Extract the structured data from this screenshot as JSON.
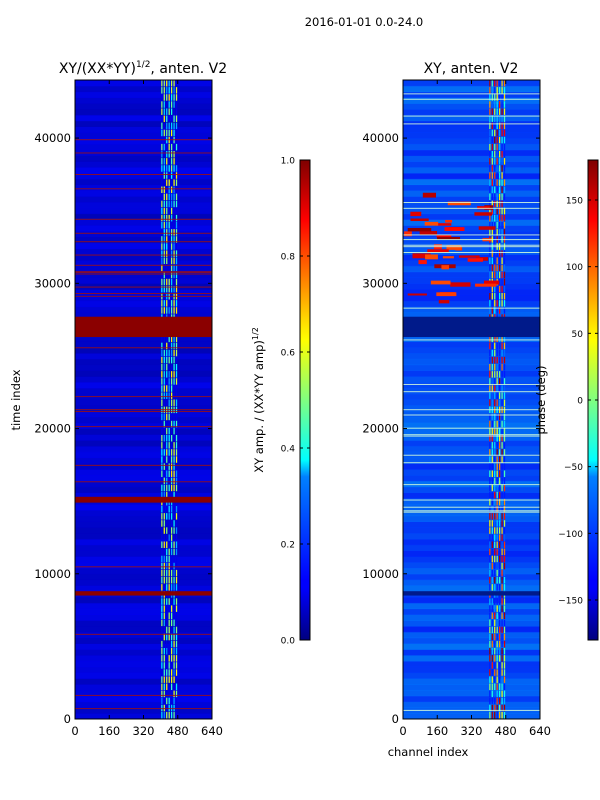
{
  "figure": {
    "suptitle": "2016-01-01 0.0-24.0"
  },
  "chart_data": [
    {
      "type": "heatmap",
      "title": "XY/(XX*YY)^1/2, anten. V2",
      "title_parts": {
        "main": "XY/(XX*YY)",
        "superscript": "1/2",
        "suffix": ", anten. V2"
      },
      "xlabel": "",
      "ylabel": "time index",
      "xlim": [
        0,
        640
      ],
      "ylim": [
        0,
        44000
      ],
      "xticks": [
        0,
        160,
        320,
        480,
        640
      ],
      "yticks": [
        0,
        10000,
        20000,
        30000,
        40000
      ],
      "active_channel_range": [
        400,
        480
      ],
      "flagged_time_bands": [
        [
          26300,
          27700
        ],
        [
          14900,
          15300
        ],
        [
          8500,
          8800
        ]
      ],
      "colorbar": {
        "label": "XY amp. / (XX*YY amp)^1/2",
        "label_parts": {
          "main": "XY amp. / (XX*YY amp)",
          "superscript": "1/2"
        },
        "range": [
          0.0,
          1.0
        ],
        "ticks": [
          "0.0",
          "0.2",
          "0.4",
          "0.6",
          "0.8",
          "1.0"
        ],
        "colormap": "jet"
      }
    },
    {
      "type": "heatmap",
      "title": "XY, anten. V2",
      "xlabel": "channel index",
      "ylabel": "",
      "xlim": [
        0,
        640
      ],
      "ylim": [
        0,
        44000
      ],
      "xticks": [
        0,
        160,
        320,
        480,
        640
      ],
      "yticks": [
        0,
        10000,
        20000,
        30000,
        40000
      ],
      "active_channel_range": [
        400,
        480
      ],
      "flagged_time_bands": [
        [
          26300,
          27700
        ],
        [
          8500,
          8800
        ]
      ],
      "colorbar": {
        "label": "phase (deg)",
        "range": [
          -180,
          180
        ],
        "ticks": [
          "−150",
          "−100",
          "−50",
          "0",
          "50",
          "100",
          "150"
        ],
        "tick_values": [
          -150,
          -100,
          -50,
          0,
          50,
          100,
          150
        ],
        "colormap": "jet"
      }
    }
  ],
  "colors": {
    "background": "#ffffff",
    "jet_low": "#00007f",
    "jet_high": "#7f0000"
  }
}
